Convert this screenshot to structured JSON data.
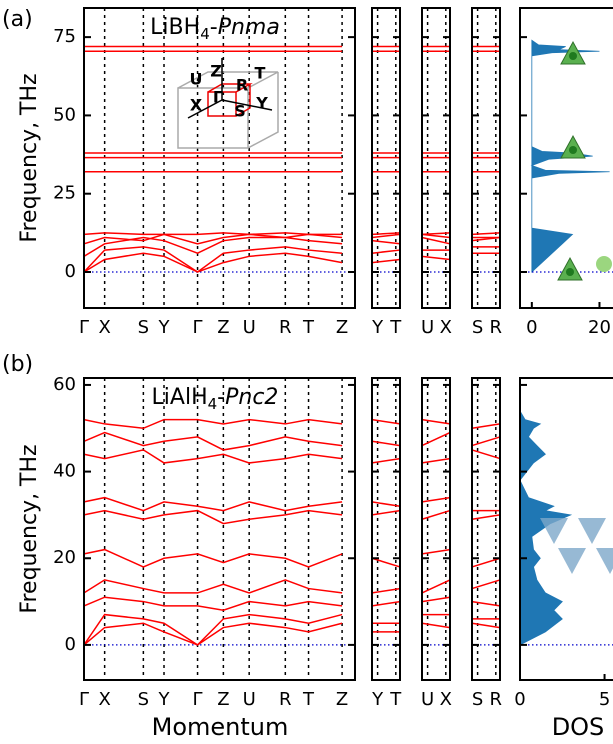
{
  "chart_data": [
    {
      "type": "line",
      "panel_label": "(a)",
      "title_parts": {
        "formula": "LiBH",
        "subscript": "4",
        "separator": "-",
        "phase": "Pnma"
      },
      "ylabel": "Frequency, THz",
      "ylim": [
        -11.5,
        84.3
      ],
      "yticks": [
        0,
        25,
        50,
        75
      ],
      "color": "#ff0000",
      "bz_labels": [
        "U",
        "Z",
        "R",
        "T",
        "X",
        "Γ",
        "S",
        "Y"
      ],
      "segments": [
        {
          "xlim": [
            0,
            10.5
          ],
          "x": [
            0,
            0.8,
            2.3,
            3.1,
            4.4,
            5.4,
            6.4,
            7.8,
            8.7,
            10
          ],
          "xticks": [
            {
              "value": 0,
              "label": "Γ"
            },
            {
              "value": 0.8,
              "label": "X"
            },
            {
              "value": 2.3,
              "label": "S"
            },
            {
              "value": 3.1,
              "label": "Y"
            },
            {
              "value": 4.4,
              "label": "Γ"
            },
            {
              "value": 5.4,
              "label": "Z"
            },
            {
              "value": 6.4,
              "label": "U"
            },
            {
              "value": 7.8,
              "label": "R"
            },
            {
              "value": 8.7,
              "label": "T"
            },
            {
              "value": 10,
              "label": "Z"
            }
          ],
          "series": [
            {
              "values": [
                72,
                72,
                72,
                72,
                72,
                72,
                72,
                72,
                72,
                72
              ]
            },
            {
              "values": [
                70.5,
                70.5,
                70.5,
                70.5,
                70.5,
                70.5,
                70.5,
                70.5,
                70.5,
                70.5
              ]
            },
            {
              "values": [
                38,
                38,
                38,
                38,
                38,
                38,
                38,
                38,
                38,
                38
              ]
            },
            {
              "values": [
                36.5,
                36.5,
                36.5,
                36.5,
                36.5,
                36.5,
                36.5,
                36.5,
                36.5,
                36.5
              ]
            },
            {
              "values": [
                32,
                32,
                32,
                32,
                32,
                32,
                32,
                32,
                32,
                32
              ]
            },
            {
              "values": [
                0,
                4,
                6,
                5,
                0,
                3,
                5,
                6,
                5,
                3
              ]
            },
            {
              "values": [
                0,
                7,
                8,
                7,
                0,
                6,
                7,
                8,
                7,
                6
              ]
            },
            {
              "values": [
                5,
                9,
                11,
                10,
                6,
                10,
                11,
                11,
                10,
                9
              ]
            },
            {
              "values": [
                9,
                11,
                10,
                12,
                9,
                11,
                12,
                11,
                12,
                11
              ]
            },
            {
              "values": [
                12,
                12.5,
                12,
                12,
                12,
                12.5,
                12,
                12.5,
                12,
                12
              ]
            }
          ]
        },
        {
          "xlim": [
            0,
            1
          ],
          "x": [
            0,
            1
          ],
          "xticks": [
            {
              "value": 0.2,
              "label": "Y"
            },
            {
              "value": 0.85,
              "label": "T"
            }
          ],
          "series": [
            {
              "values": [
                72,
                72
              ]
            },
            {
              "values": [
                70.5,
                70.5
              ]
            },
            {
              "values": [
                38,
                38
              ]
            },
            {
              "values": [
                36.5,
                36.5
              ]
            },
            {
              "values": [
                32,
                32
              ]
            },
            {
              "values": [
                3,
                4
              ]
            },
            {
              "values": [
                6,
                7
              ]
            },
            {
              "values": [
                10,
                9
              ]
            },
            {
              "values": [
                11,
                12
              ]
            },
            {
              "values": [
                12,
                12.5
              ]
            }
          ]
        },
        {
          "xlim": [
            0,
            1
          ],
          "x": [
            0,
            1
          ],
          "xticks": [
            {
              "value": 0.2,
              "label": "U"
            },
            {
              "value": 0.85,
              "label": "X"
            }
          ],
          "series": [
            {
              "values": [
                72,
                72
              ]
            },
            {
              "values": [
                70.5,
                70.5
              ]
            },
            {
              "values": [
                38,
                38
              ]
            },
            {
              "values": [
                36.5,
                36.5
              ]
            },
            {
              "values": [
                32,
                32
              ]
            },
            {
              "values": [
                5,
                4
              ]
            },
            {
              "values": [
                7,
                7
              ]
            },
            {
              "values": [
                11,
                9
              ]
            },
            {
              "values": [
                12,
                11
              ]
            },
            {
              "values": [
                12,
                12.5
              ]
            }
          ]
        },
        {
          "xlim": [
            0,
            1
          ],
          "x": [
            0,
            1
          ],
          "xticks": [
            {
              "value": 0.2,
              "label": "S"
            },
            {
              "value": 0.85,
              "label": "R"
            }
          ],
          "series": [
            {
              "values": [
                72,
                72
              ]
            },
            {
              "values": [
                70.5,
                70.5
              ]
            },
            {
              "values": [
                38,
                38
              ]
            },
            {
              "values": [
                36.5,
                36.5
              ]
            },
            {
              "values": [
                32,
                32
              ]
            },
            {
              "values": [
                6,
                6
              ]
            },
            {
              "values": [
                8,
                8
              ]
            },
            {
              "values": [
                11,
                11
              ]
            },
            {
              "values": [
                10,
                11
              ]
            },
            {
              "values": [
                12,
                12.5
              ]
            }
          ]
        }
      ],
      "dos": {
        "xlim": [
          -3.5,
          24
        ],
        "xticks": [
          0,
          20
        ],
        "color": "#1f77b4",
        "freq": [
          0,
          2,
          5,
          8,
          10,
          12,
          13,
          14,
          30,
          31.5,
          32,
          32.5,
          34,
          36,
          37,
          38,
          38.5,
          40,
          69,
          70,
          70.5,
          71,
          72,
          72.5,
          74
        ],
        "values": [
          0,
          2,
          5,
          8,
          10,
          12,
          6,
          0,
          0,
          8,
          23,
          4,
          0,
          5,
          18,
          12,
          3,
          0,
          0,
          6,
          20,
          8,
          10,
          2,
          0
        ]
      }
    },
    {
      "type": "line",
      "panel_label": "(b)",
      "title_parts": {
        "formula": "LiAlH",
        "subscript": "4",
        "separator": "-",
        "phase": "Pnc2"
      },
      "ylabel": "Frequency, THz",
      "ylim": [
        -8.1,
        61.6
      ],
      "yticks": [
        0,
        20,
        40,
        60
      ],
      "color": "#ff0000",
      "xlabel": "Momentum",
      "dos_xlabel": "DOS",
      "segments": [
        {
          "xlim": [
            0,
            10.5
          ],
          "x": [
            0,
            0.8,
            2.3,
            3.1,
            4.4,
            5.4,
            6.4,
            7.8,
            8.7,
            10
          ],
          "xticks": [
            {
              "value": 0,
              "label": "Γ"
            },
            {
              "value": 0.8,
              "label": "X"
            },
            {
              "value": 2.3,
              "label": "S"
            },
            {
              "value": 3.1,
              "label": "Y"
            },
            {
              "value": 4.4,
              "label": "Γ"
            },
            {
              "value": 5.4,
              "label": "Z"
            },
            {
              "value": 6.4,
              "label": "U"
            },
            {
              "value": 7.8,
              "label": "R"
            },
            {
              "value": 8.7,
              "label": "T"
            },
            {
              "value": 10,
              "label": "Z"
            }
          ],
          "series": [
            {
              "values": [
                52,
                51,
                50,
                52,
                52,
                51,
                52,
                51,
                52,
                51
              ]
            },
            {
              "values": [
                47,
                49,
                46,
                47,
                48,
                45,
                46,
                48,
                47,
                46
              ]
            },
            {
              "values": [
                44,
                43,
                45,
                42,
                43,
                44,
                42,
                43,
                44,
                43
              ]
            },
            {
              "values": [
                33,
                34,
                31,
                33,
                32,
                31,
                33,
                31,
                32,
                33
              ]
            },
            {
              "values": [
                30,
                31,
                29,
                30,
                31,
                28,
                29,
                30,
                31,
                30
              ]
            },
            {
              "values": [
                21,
                22,
                18,
                20,
                21,
                19,
                21,
                20,
                18,
                21
              ]
            },
            {
              "values": [
                12,
                15,
                13,
                12,
                12,
                14,
                12,
                15,
                13,
                12
              ]
            },
            {
              "values": [
                9,
                11,
                10,
                9,
                9,
                8,
                10,
                9,
                10,
                9
              ]
            },
            {
              "values": [
                0,
                7,
                6,
                5,
                0,
                6,
                7,
                6,
                5,
                7
              ]
            },
            {
              "values": [
                0,
                4,
                5,
                3,
                0,
                4,
                5,
                4,
                3,
                5
              ]
            }
          ]
        },
        {
          "xlim": [
            0,
            1
          ],
          "x": [
            0,
            1
          ],
          "xticks": [
            {
              "value": 0.2,
              "label": "Y"
            },
            {
              "value": 0.85,
              "label": "T"
            }
          ],
          "series": [
            {
              "values": [
                52,
                51
              ]
            },
            {
              "values": [
                47,
                46
              ]
            },
            {
              "values": [
                42,
                43
              ]
            },
            {
              "values": [
                33,
                32
              ]
            },
            {
              "values": [
                30,
                31
              ]
            },
            {
              "values": [
                20,
                18
              ]
            },
            {
              "values": [
                12,
                13
              ]
            },
            {
              "values": [
                9,
                10
              ]
            },
            {
              "values": [
                5,
                5
              ]
            },
            {
              "values": [
                3,
                3
              ]
            }
          ]
        },
        {
          "xlim": [
            0,
            1
          ],
          "x": [
            0,
            1
          ],
          "xticks": [
            {
              "value": 0.2,
              "label": "U"
            },
            {
              "value": 0.85,
              "label": "X"
            }
          ],
          "series": [
            {
              "values": [
                52,
                51
              ]
            },
            {
              "values": [
                46,
                49
              ]
            },
            {
              "values": [
                42,
                43
              ]
            },
            {
              "values": [
                33,
                34
              ]
            },
            {
              "values": [
                29,
                31
              ]
            },
            {
              "values": [
                21,
                22
              ]
            },
            {
              "values": [
                12,
                15
              ]
            },
            {
              "values": [
                10,
                11
              ]
            },
            {
              "values": [
                7,
                7
              ]
            },
            {
              "values": [
                5,
                4
              ]
            }
          ]
        },
        {
          "xlim": [
            0,
            1
          ],
          "x": [
            0,
            1
          ],
          "xticks": [
            {
              "value": 0.2,
              "label": "S"
            },
            {
              "value": 0.85,
              "label": "R"
            }
          ],
          "series": [
            {
              "values": [
                50,
                51
              ]
            },
            {
              "values": [
                46,
                48
              ]
            },
            {
              "values": [
                45,
                43
              ]
            },
            {
              "values": [
                31,
                31
              ]
            },
            {
              "values": [
                29,
                30
              ]
            },
            {
              "values": [
                18,
                20
              ]
            },
            {
              "values": [
                13,
                15
              ]
            },
            {
              "values": [
                10,
                9
              ]
            },
            {
              "values": [
                6,
                6
              ]
            },
            {
              "values": [
                5,
                4
              ]
            }
          ]
        }
      ],
      "dos": {
        "xlim": [
          0,
          5.5
        ],
        "xticks": [
          0,
          5
        ],
        "color": "#1f77b4",
        "freq": [
          0,
          3,
          6,
          8,
          10,
          12,
          15,
          18,
          20,
          22,
          25,
          28,
          30,
          31,
          32,
          34,
          38,
          42,
          44,
          46,
          48,
          50,
          51,
          52,
          54
        ],
        "values": [
          0,
          1.5,
          2.5,
          2,
          2.5,
          1.5,
          1,
          0.8,
          1.2,
          0.8,
          0.7,
          1.8,
          3,
          1.5,
          2,
          0.5,
          0,
          0.8,
          1.5,
          1,
          0.5,
          0.8,
          1.2,
          0.3,
          0
        ]
      }
    }
  ]
}
